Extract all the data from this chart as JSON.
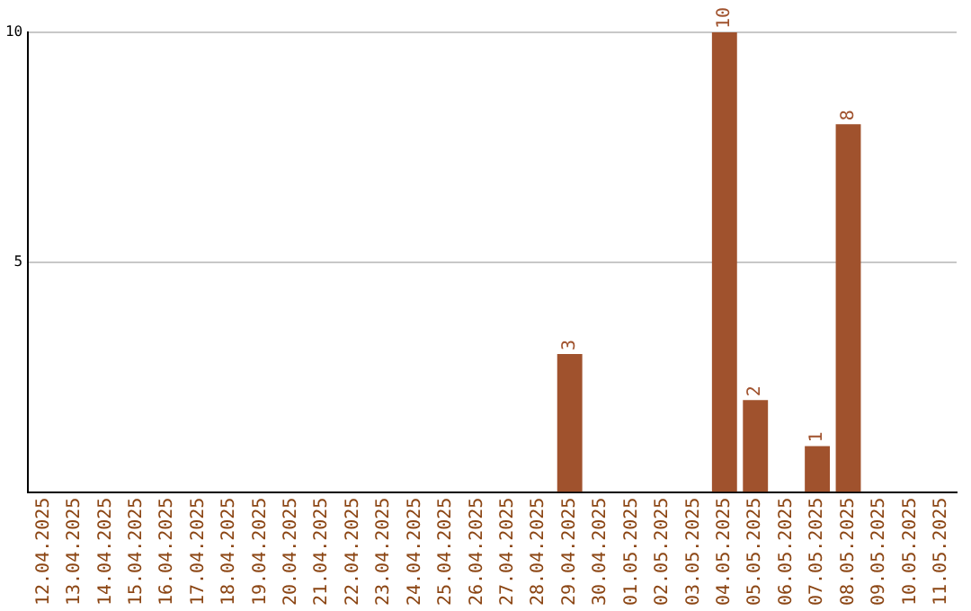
{
  "chart_data": {
    "type": "bar",
    "categories": [
      "12.04.2025",
      "13.04.2025",
      "14.04.2025",
      "15.04.2025",
      "16.04.2025",
      "17.04.2025",
      "18.04.2025",
      "19.04.2025",
      "20.04.2025",
      "21.04.2025",
      "22.04.2025",
      "23.04.2025",
      "24.04.2025",
      "25.04.2025",
      "26.04.2025",
      "27.04.2025",
      "28.04.2025",
      "29.04.2025",
      "30.04.2025",
      "01.05.2025",
      "02.05.2025",
      "03.05.2025",
      "04.05.2025",
      "05.05.2025",
      "06.05.2025",
      "07.05.2025",
      "08.05.2025",
      "09.05.2025",
      "10.05.2025",
      "11.05.2025"
    ],
    "values": [
      0,
      0,
      0,
      0,
      0,
      0,
      0,
      0,
      0,
      0,
      0,
      0,
      0,
      0,
      0,
      0,
      0,
      3,
      0,
      0,
      0,
      0,
      10,
      2,
      0,
      1,
      8,
      0,
      0,
      0
    ],
    "value_labels": [
      null,
      null,
      null,
      null,
      null,
      null,
      null,
      null,
      null,
      null,
      null,
      null,
      null,
      null,
      null,
      null,
      null,
      "3",
      null,
      null,
      null,
      null,
      "10",
      "2",
      null,
      "1",
      "8",
      null,
      null,
      null
    ],
    "color": "#a0522d",
    "ylim": [
      0,
      10
    ],
    "yticks": [
      5,
      10
    ],
    "grid": "y",
    "legend": false
  }
}
